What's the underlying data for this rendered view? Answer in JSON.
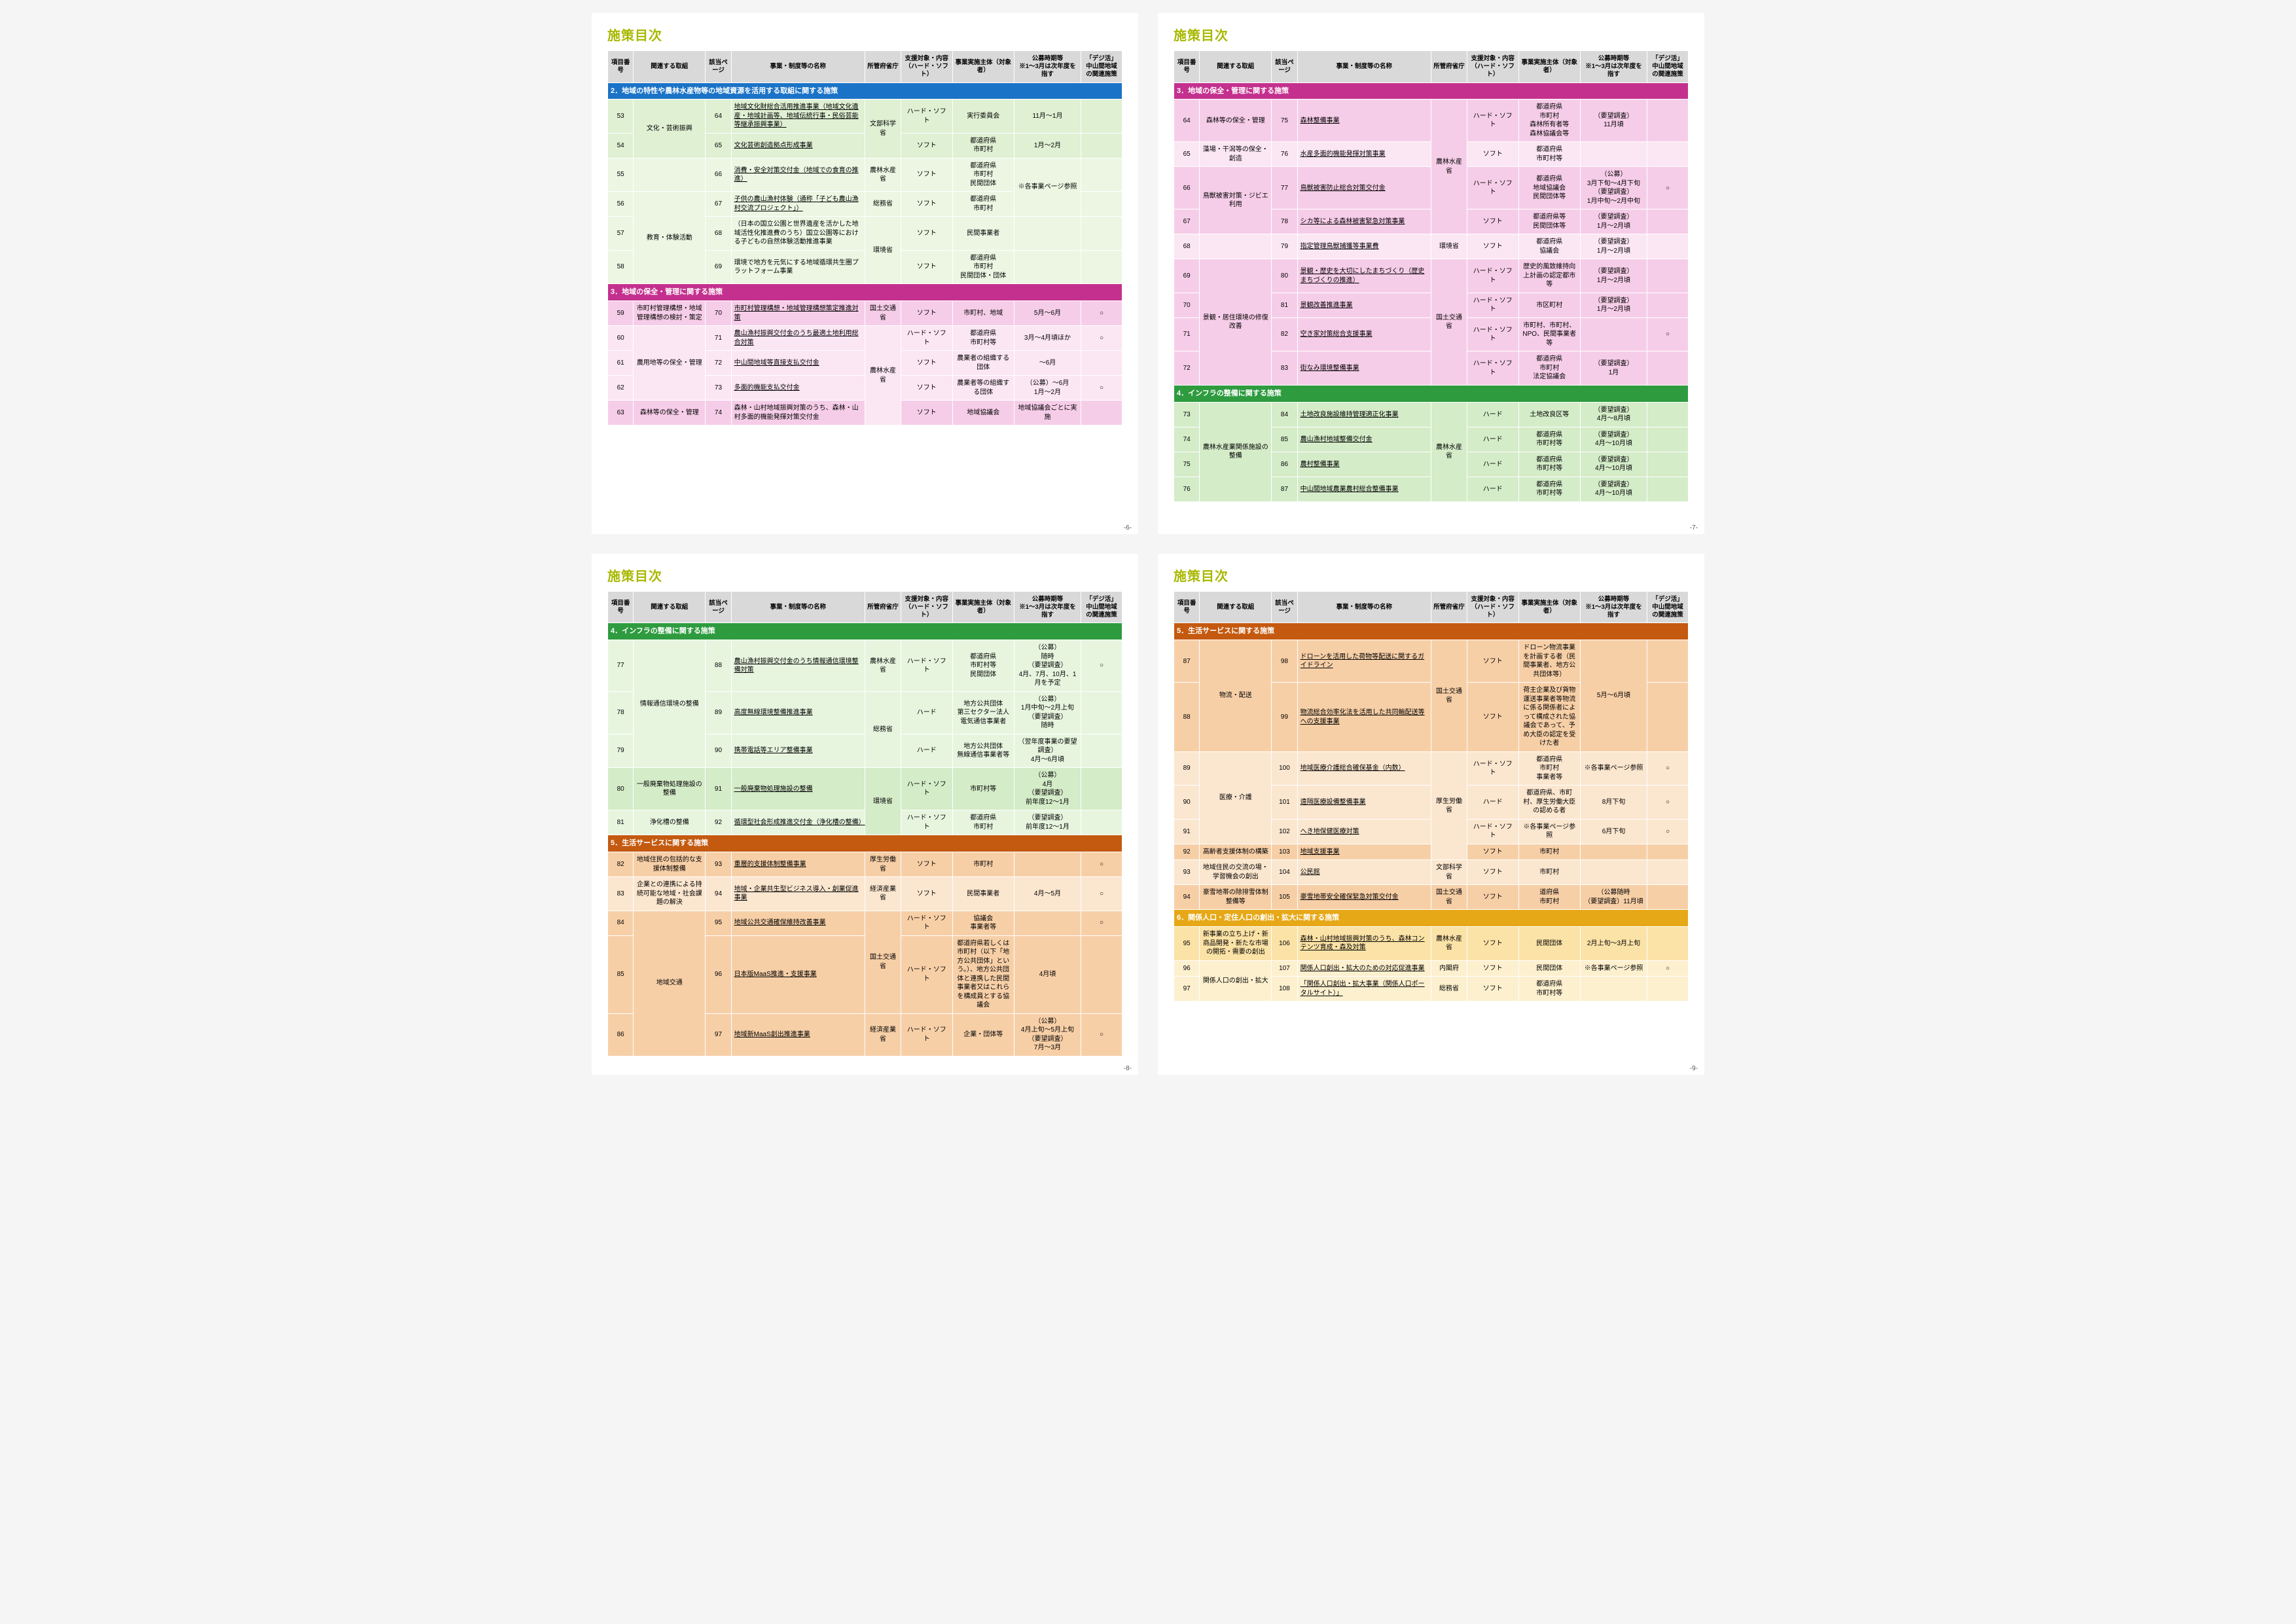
{
  "page_title": "施策目次",
  "page_numbers": [
    "-6-",
    "-7-",
    "-8-",
    "-9-"
  ],
  "columns": [
    "項目番号",
    "関連する取組",
    "該当ページ",
    "事業・制度等の名称",
    "所管府省庁",
    "支援対象・内容（ハード・ソフト）",
    "事業実施主体（対象者）",
    "公募時期等\n※1〜3月は次年度を指す",
    "「デジ活」中山間地域の関連施策"
  ],
  "section_colors": {
    "s2": "#1b73c7",
    "s3": "#c4308e",
    "s4": "#2e9b3f",
    "s5": "#c45a10",
    "s6": "#e6a817"
  },
  "tints": {
    "s2_a": "#dff0d3",
    "s2_b": "#ecf6e3",
    "s3_a": "#f6cde8",
    "s3_b": "#fbe6f3",
    "s4_a": "#d4ecc8",
    "s4_b": "#e7f5df",
    "s5_a": "#f7cfa7",
    "s5_b": "#fbe6cf",
    "s6_a": "#fbe2a6",
    "s6_b": "#fdf0cf"
  },
  "sections": {
    "s2": "2．地域の特性や農林水産物等の地域資源を活用する取組に関する施策",
    "s3": "3．地域の保全・管理に関する施策",
    "s4": "4．インフラの整備に関する施策",
    "s5": "5．生活サービスに関する施策",
    "s6": "6．関係人口・定住人口の創出・拡大に関する施策"
  },
  "pages": [
    {
      "blocks": [
        {
          "type": "section",
          "key": "s2"
        },
        {
          "type": "row",
          "tint": "s2_a",
          "no": "53",
          "ini": "文化・芸術振興",
          "ini_span": 2,
          "pg": "64",
          "name": "地域文化財総合活用推進事業（地域文化遺産・地域計画等、地域伝統行事・民俗芸能等継承振興事業）",
          "link": true,
          "min": "文部科学省",
          "min_span": 2,
          "hs": "ハード・ソフト",
          "imp": "実行委員会",
          "per": "11月〜1月",
          "dig": ""
        },
        {
          "type": "row",
          "tint": "s2_a",
          "no": "54",
          "pg": "65",
          "name": "文化芸術創造拠点形成事業",
          "link": true,
          "hs": "ソフト",
          "imp": "都道府県\n市町村",
          "per": "1月〜2月",
          "dig": ""
        },
        {
          "type": "row",
          "tint": "s2_b",
          "no": "55",
          "pg": "66",
          "name": "消費・安全対策交付金（地域での食育の推進）",
          "link": true,
          "min": "農林水産省",
          "hs": "ソフト",
          "imp": "都道府県\n市町村\n民間団体",
          "per": "※各事業ページ参照",
          "per_span": 2,
          "dig": ""
        },
        {
          "type": "row",
          "tint": "s2_b",
          "no": "56",
          "ini": "教育・体験活動",
          "ini_span": 3,
          "pg": "67",
          "name": "子供の農山漁村体験（通称「子ども農山漁村交流プロジェクト」）",
          "link": true,
          "min": "総務省",
          "hs": "ソフト",
          "imp": "都道府県\n市町村",
          "dig": ""
        },
        {
          "type": "row",
          "tint": "s2_b",
          "no": "57",
          "pg": "68",
          "name": "（日本の国立公園と世界遺産を活かした地域活性化推進費のうち）国立公園等における子どもの自然体験活動推進事業",
          "min": "環境省",
          "min_span": 2,
          "hs": "ソフト",
          "imp": "民間事業者",
          "per": "",
          "dig": ""
        },
        {
          "type": "row",
          "tint": "s2_b",
          "no": "58",
          "ini": "地域循環共生圏づくり",
          "pg": "69",
          "name": "環境で地方を元気にする地域循環共生圏プラットフォーム事業",
          "hs": "ソフト",
          "imp": "都道府県\n市町村\n民間団体・団体",
          "per": "",
          "dig": ""
        },
        {
          "type": "section",
          "key": "s3"
        },
        {
          "type": "row",
          "tint": "s3_a",
          "no": "59",
          "ini": "市町村管理構想・地域管理構想の検討・策定",
          "pg": "70",
          "name": "市町村管理構想・地域管理構想策定推進対策",
          "link": true,
          "min": "国土交通省",
          "hs": "ソフト",
          "imp": "市町村、地域",
          "per": "5月〜6月",
          "dig": "○"
        },
        {
          "type": "row",
          "tint": "s3_b",
          "no": "60",
          "ini": "農用地等の保全・管理",
          "ini_span": 3,
          "pg": "71",
          "name": "農山漁村振興交付金のうち最適土地利用総合対策",
          "link": true,
          "min": "農林水産省",
          "min_span": 4,
          "hs": "ハード・ソフト",
          "imp": "都道府県\n市町村等",
          "per": "3月〜4月頃ほか",
          "dig": "○"
        },
        {
          "type": "row",
          "tint": "s3_b",
          "no": "61",
          "pg": "72",
          "name": "中山間地域等直接支払交付金",
          "link": true,
          "hs": "ソフト",
          "imp": "農業者の組織する団体",
          "per": "〜6月",
          "dig": ""
        },
        {
          "type": "row",
          "tint": "s3_b",
          "no": "62",
          "pg": "73",
          "name": "多面的機能支払交付金",
          "link": true,
          "hs": "ソフト",
          "imp": "農業者等の組織する団体",
          "per": "（公募）〜6月\n1月〜2月",
          "dig": "○"
        },
        {
          "type": "row",
          "tint": "s3_a",
          "no": "63",
          "ini": "森林等の保全・管理",
          "pg": "74",
          "name": "森林・山村地域振興対策のうち、森林・山村多面的機能発揮対策交付金",
          "hs": "ソフト",
          "imp": "地域協議会",
          "per": "地域協議会ごとに実施",
          "dig": ""
        }
      ]
    },
    {
      "blocks": [
        {
          "type": "section",
          "key": "s3"
        },
        {
          "type": "row",
          "tint": "s3_a",
          "no": "64",
          "ini": "森林等の保全・管理",
          "pg": "75",
          "name": "森林整備事業",
          "link": true,
          "min": "農林水産省",
          "min_span": 4,
          "hs": "ハード・ソフト",
          "imp": "都道府県\n市町村\n森林所有者等\n森林協議会等",
          "per": "（要望調査）\n11月頃",
          "dig": ""
        },
        {
          "type": "row",
          "tint": "s3_b",
          "no": "65",
          "ini": "藻場・干潟等の保全・創造",
          "pg": "76",
          "name": "水産多面的機能発揮対策事業",
          "link": true,
          "hs": "ソフト",
          "imp": "都道府県\n市町村等",
          "per": "",
          "dig": ""
        },
        {
          "type": "row",
          "tint": "s3_a",
          "no": "66",
          "ini": "鳥獣被害対策・ジビエ利用",
          "ini_span": 2,
          "pg": "77",
          "name": "鳥獣被害防止総合対策交付金",
          "link": true,
          "hs": "ハード・ソフト",
          "imp": "都道府県\n地域協議会\n民間団体等",
          "per": "（公募）\n3月下旬〜4月下旬\n（要望調査）\n1月中旬〜2月中旬",
          "dig": "○"
        },
        {
          "type": "row",
          "tint": "s3_a",
          "no": "67",
          "pg": "78",
          "name": "シカ等による森林被害緊急対策事業",
          "link": true,
          "hs": "ソフト",
          "imp": "都道府県等\n民間団体等",
          "per": "（要望調査）\n1月〜2月頃",
          "dig": ""
        },
        {
          "type": "row",
          "tint": "s3_b",
          "no": "68",
          "pg": "79",
          "name": "指定管理鳥獣捕獲等事業費",
          "link": true,
          "min": "環境省",
          "hs": "ソフト",
          "imp": "都道府県\n協議会",
          "per": "（要望調査）\n1月〜2月頃",
          "dig": ""
        },
        {
          "type": "row",
          "tint": "s3_a",
          "no": "69",
          "ini": "景観・居住環境の修復改善",
          "ini_span": 4,
          "pg": "80",
          "name": "景観・歴史を大切にしたまちづくり（歴史まちづくりの推進）",
          "link": true,
          "min": "国土交通省",
          "min_span": 4,
          "hs": "ハード・ソフト",
          "imp": "歴史的風致維持向上計画の認定都市等",
          "per": "（要望調査）\n1月〜2月頃",
          "dig": ""
        },
        {
          "type": "row",
          "tint": "s3_a",
          "no": "70",
          "pg": "81",
          "name": "景観改善推進事業",
          "link": true,
          "hs": "ハード・ソフト",
          "imp": "市区町村",
          "per": "（要望調査）\n1月〜2月頃",
          "dig": ""
        },
        {
          "type": "row",
          "tint": "s3_a",
          "no": "71",
          "pg": "82",
          "name": "空き家対策総合支援事業",
          "link": true,
          "hs": "ハード・ソフト",
          "imp": "市町村、市町村、NPO、民間事業者等",
          "per": "",
          "dig": "○"
        },
        {
          "type": "row",
          "tint": "s3_a",
          "no": "72",
          "pg": "83",
          "name": "街なみ環境整備事業",
          "link": true,
          "hs": "ハード・ソフト",
          "imp": "都道府県\n市町村\n法定協議会",
          "per": "（要望調査）\n1月",
          "dig": ""
        },
        {
          "type": "section",
          "key": "s4"
        },
        {
          "type": "row",
          "tint": "s4_a",
          "no": "73",
          "ini": "農林水産業関係施設の整備",
          "ini_span": 4,
          "pg": "84",
          "name": "土地改良施設維持管理適正化事業",
          "link": true,
          "min": "農林水産省",
          "min_span": 4,
          "hs": "ハード",
          "imp": "土地改良区等",
          "per": "（要望調査）\n4月〜8月頃",
          "dig": ""
        },
        {
          "type": "row",
          "tint": "s4_a",
          "no": "74",
          "pg": "85",
          "name": "農山漁村地域整備交付金",
          "link": true,
          "hs": "ハード",
          "imp": "都道府県\n市町村等",
          "per": "（要望調査）\n4月〜10月頃",
          "dig": ""
        },
        {
          "type": "row",
          "tint": "s4_a",
          "no": "75",
          "pg": "86",
          "name": "農村整備事業",
          "link": true,
          "hs": "ハード",
          "imp": "都道府県\n市町村等",
          "per": "（要望調査）\n4月〜10月頃",
          "dig": ""
        },
        {
          "type": "row",
          "tint": "s4_a",
          "no": "76",
          "pg": "87",
          "name": "中山間地域農業農村総合整備事業",
          "link": true,
          "hs": "ハード",
          "imp": "都道府県\n市町村等",
          "per": "（要望調査）\n4月〜10月頃",
          "dig": ""
        }
      ]
    },
    {
      "blocks": [
        {
          "type": "section",
          "key": "s4"
        },
        {
          "type": "row",
          "tint": "s4_b",
          "no": "77",
          "ini": "情報通信環境の整備",
          "ini_span": 3,
          "pg": "88",
          "name": "農山漁村振興交付金のうち情報通信環境整備対策",
          "link": true,
          "min": "農林水産省",
          "hs": "ハード・ソフト",
          "imp": "都道府県\n市町村等\n民間団体",
          "per": "（公募）\n随時\n（要望調査）\n4月、7月、10月、1月を予定",
          "dig": "○"
        },
        {
          "type": "row",
          "tint": "s4_b",
          "no": "78",
          "pg": "89",
          "name": "高度無線環境整備推進事業",
          "link": true,
          "min": "総務省",
          "min_span": 2,
          "hs": "ハード",
          "imp": "地方公共団体\n第三セクター法人\n電気通信事業者",
          "per": "（公募）\n1月中旬〜2月上旬\n（要望調査）\n随時",
          "dig": ""
        },
        {
          "type": "row",
          "tint": "s4_b",
          "no": "79",
          "pg": "90",
          "name": "携帯電話等エリア整備事業",
          "link": true,
          "hs": "ハード",
          "imp": "地方公共団体\n無線通信事業者等",
          "per": "（翌年度事業の要望調査）\n4月〜6月頃",
          "dig": ""
        },
        {
          "type": "row",
          "tint": "s4_a",
          "no": "80",
          "ini": "一般廃棄物処理施設の整備",
          "pg": "91",
          "name": "一般廃棄物処理施設の整備",
          "link": true,
          "min": "環境省",
          "min_span": 2,
          "hs": "ハード・ソフト",
          "imp": "市町村等",
          "per": "（公募）\n4月\n（要望調査）\n前年度12〜1月",
          "dig": ""
        },
        {
          "type": "row",
          "tint": "s4_b",
          "no": "81",
          "ini": "浄化槽の整備",
          "pg": "92",
          "name": "循環型社会形成推進交付金（浄化槽の整備）",
          "link": true,
          "hs": "ハード・ソフト",
          "imp": "都道府県\n市町村",
          "per": "（要望調査）\n前年度12〜1月",
          "dig": ""
        },
        {
          "type": "section",
          "key": "s5"
        },
        {
          "type": "row",
          "tint": "s5_a",
          "no": "82",
          "ini": "地域住民の包括的な支援体制整備",
          "pg": "93",
          "name": "重層的支援体制整備事業",
          "link": true,
          "min": "厚生労働省",
          "hs": "ソフト",
          "imp": "市町村",
          "per": "",
          "dig": "○"
        },
        {
          "type": "row",
          "tint": "s5_b",
          "no": "83",
          "ini": "企業との連携による持続可能な地域・社会課題の解決",
          "pg": "94",
          "name": "地域・企業共生型ビジネス導入・創業促進事業",
          "link": true,
          "min": "経済産業省",
          "hs": "ソフト",
          "imp": "民間事業者",
          "per": "4月〜5月",
          "dig": "○"
        },
        {
          "type": "row",
          "tint": "s5_a",
          "no": "84",
          "ini": "地域交通",
          "ini_span": 3,
          "pg": "95",
          "name": "地域公共交通確保維持改善事業",
          "link": true,
          "min": "国土交通省",
          "min_span": 2,
          "hs": "ハード・ソフト",
          "imp": "協議会\n事業者等",
          "per": "",
          "dig": "○"
        },
        {
          "type": "row",
          "tint": "s5_a",
          "no": "85",
          "pg": "96",
          "name": "日本版MaaS推進・支援事業",
          "link": true,
          "hs": "ハード・ソフト",
          "imp": "都道府県若しくは市町村（以下「地方公共団体」という。）、地方公共団体と連携した民間事業者又はこれらを構成員とする協議会",
          "per": "4月頃",
          "dig": ""
        },
        {
          "type": "row",
          "tint": "s5_a",
          "no": "86",
          "pg": "97",
          "name": "地域新MaaS創出推進事業",
          "link": true,
          "min": "経済産業省",
          "hs": "ハード・ソフト",
          "imp": "企業・団体等",
          "per": "（公募）\n4月上旬〜5月上旬\n（要望調査）\n7月〜3月",
          "dig": "○"
        }
      ]
    },
    {
      "blocks": [
        {
          "type": "section",
          "key": "s5"
        },
        {
          "type": "row",
          "tint": "s5_a",
          "no": "87",
          "ini": "物流・配送",
          "ini_span": 2,
          "pg": "98",
          "name": "ドローンを活用した荷物等配送に関するガイドライン",
          "link": true,
          "min": "国土交通省",
          "min_span": 2,
          "hs": "ソフト",
          "imp": "ドローン物流事業を計画する者（民間事業者、地方公共団体等）",
          "per": "5月〜6月頃",
          "per_span": 2,
          "dig": ""
        },
        {
          "type": "row",
          "tint": "s5_a",
          "no": "88",
          "pg": "99",
          "name": "物流総合効率化法を活用した共同輸配送等への支援事業",
          "link": true,
          "hs": "ソフト",
          "imp": "荷主企業及び貨物運送事業者等物流に係る関係者によって構成された協議会であって、予め大臣の認定を受けた者",
          "dig": ""
        },
        {
          "type": "row",
          "tint": "s5_b",
          "no": "89",
          "ini": "医療・介護",
          "ini_span": 3,
          "pg": "100",
          "name": "地域医療介護総合確保基金（内数）",
          "link": true,
          "min": "厚生労働省",
          "min_span": 4,
          "hs": "ハード・ソフト",
          "imp": "都道府県\n市町村\n事業者等",
          "per": "※各事業ページ参照",
          "dig": "○"
        },
        {
          "type": "row",
          "tint": "s5_b",
          "no": "90",
          "pg": "101",
          "name": "遠隔医療設備整備事業",
          "link": true,
          "hs": "ハード",
          "imp": "都道府県、市町村、厚生労働大臣の認める者",
          "per": "8月下旬",
          "dig": "○"
        },
        {
          "type": "row",
          "tint": "s5_b",
          "no": "91",
          "pg": "102",
          "name": "へき地保健医療対策",
          "link": true,
          "hs": "ハード・ソフト",
          "imp": "※各事業ページ参照",
          "per": "6月下旬",
          "dig": "○"
        },
        {
          "type": "row",
          "tint": "s5_a",
          "no": "92",
          "ini": "高齢者支援体制の構築",
          "pg": "103",
          "name": "地域支援事業",
          "link": true,
          "hs": "ソフト",
          "imp": "市町村",
          "per": "",
          "dig": ""
        },
        {
          "type": "row",
          "tint": "s5_b",
          "no": "93",
          "ini": "地域住民の交流の場・学習機会の創出",
          "pg": "104",
          "name": "公民館",
          "link": true,
          "min": "文部科学省",
          "hs": "ソフト",
          "imp": "市町村",
          "per": "",
          "dig": ""
        },
        {
          "type": "row",
          "tint": "s5_a",
          "no": "94",
          "ini": "豪雪地帯の除排雪体制整備等",
          "pg": "105",
          "name": "豪雪地帯安全確保緊急対策交付金",
          "link": true,
          "min": "国土交通省",
          "hs": "ソフト",
          "imp": "道府県\n市町村",
          "per": "（公募随時\n（要望調査）11月頃",
          "dig": ""
        },
        {
          "type": "section",
          "key": "s6"
        },
        {
          "type": "row",
          "tint": "s6_a",
          "no": "95",
          "ini": "新事業の立ち上げ・新商品開発・新たな市場の開拓・需要の創出",
          "pg": "106",
          "name": "森林・山村地域振興対策のうち、森林コンテンツ育成・森及対策",
          "link": true,
          "min": "農林水産省",
          "hs": "ソフト",
          "imp": "民間団体",
          "per": "2月上旬〜3月上旬",
          "dig": ""
        },
        {
          "type": "row",
          "tint": "s6_b",
          "no": "96",
          "ini": "関係人口の創出・拡大",
          "ini_span": 2,
          "pg": "107",
          "name": "関係人口創出・拡大のための対応促進事業",
          "link": true,
          "min": "内閣府",
          "hs": "ソフト",
          "imp": "民間団体",
          "per": "※各事業ページ参照",
          "dig": "○"
        },
        {
          "type": "row",
          "tint": "s6_b",
          "no": "97",
          "pg": "108",
          "name": "「関係人口創出・拡大事業（関係人口ポータルサイト）」",
          "link": true,
          "min": "総務省",
          "hs": "ソフト",
          "imp": "都道府県\n市町村等",
          "per": "",
          "dig": ""
        }
      ]
    }
  ]
}
